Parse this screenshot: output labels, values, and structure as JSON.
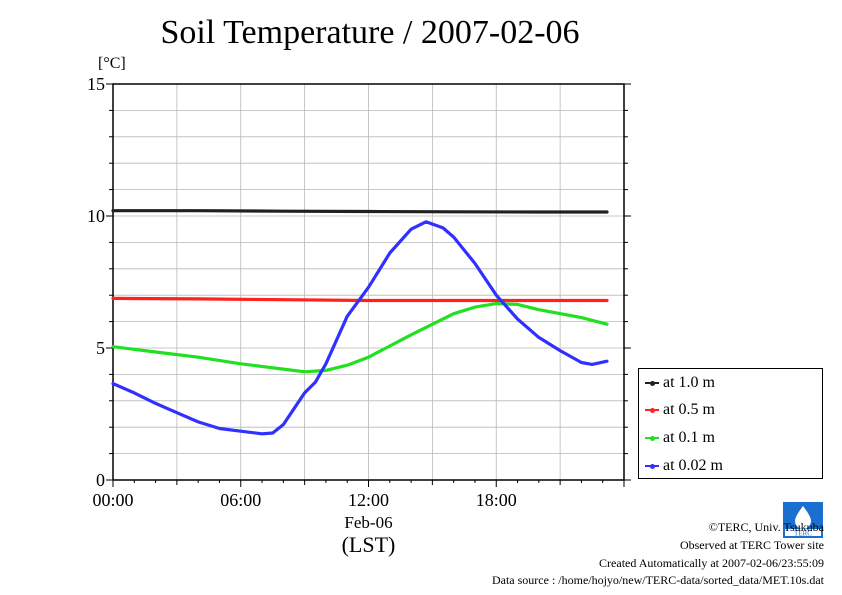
{
  "chart_data": {
    "type": "line",
    "title": "Soil Temperature / 2007-02-06",
    "ylabel": "[°C]",
    "xlabel": "Feb-06",
    "xlabel2": "(LST)",
    "ylim": [
      0,
      15
    ],
    "xlim": [
      0,
      24
    ],
    "y_ticks": [
      "0",
      "5",
      "10",
      "15"
    ],
    "x_ticks": [
      {
        "value": 0,
        "label": "00:00"
      },
      {
        "value": 6,
        "label": "06:00"
      },
      {
        "value": 12,
        "label": "12:00"
      },
      {
        "value": 18,
        "label": "18:00"
      }
    ],
    "grid": true,
    "legend_position": "right-bottom",
    "series": [
      {
        "name": "at 1.0 m",
        "color": "#202020",
        "x": [
          0,
          4,
          8,
          12,
          16,
          20,
          23.2
        ],
        "y": [
          10.2,
          10.2,
          10.18,
          10.17,
          10.16,
          10.15,
          10.15
        ]
      },
      {
        "name": "at 0.5 m",
        "color": "#ff2020",
        "x": [
          0,
          4,
          8,
          12,
          16,
          20,
          23.2
        ],
        "y": [
          6.88,
          6.86,
          6.83,
          6.8,
          6.8,
          6.8,
          6.8
        ]
      },
      {
        "name": "at 0.1 m",
        "color": "#20e020",
        "x": [
          0,
          2,
          4,
          6,
          8,
          9,
          10,
          11,
          12,
          14,
          16,
          17,
          18,
          19,
          20,
          22,
          23.2
        ],
        "y": [
          5.05,
          4.85,
          4.65,
          4.4,
          4.2,
          4.1,
          4.15,
          4.35,
          4.65,
          5.5,
          6.3,
          6.55,
          6.68,
          6.65,
          6.45,
          6.15,
          5.9
        ]
      },
      {
        "name": "at 0.02 m",
        "color": "#3030ff",
        "x": [
          0,
          1,
          2,
          3,
          4,
          5,
          6,
          7,
          7.5,
          8,
          8.5,
          9,
          9.5,
          10,
          11,
          12,
          13,
          14,
          14.7,
          15.5,
          16,
          17,
          18,
          19,
          20,
          21,
          22,
          22.5,
          23.2
        ],
        "y": [
          3.65,
          3.3,
          2.9,
          2.55,
          2.2,
          1.95,
          1.85,
          1.75,
          1.78,
          2.1,
          2.7,
          3.3,
          3.7,
          4.4,
          6.2,
          7.3,
          8.6,
          9.5,
          9.78,
          9.55,
          9.2,
          8.2,
          7.0,
          6.1,
          5.4,
          4.9,
          4.45,
          4.38,
          4.5
        ]
      }
    ]
  },
  "credits": {
    "copyright": "©TERC, Univ. Tsukuba",
    "observed": "Observed at TERC Tower site",
    "created": "Created Automatically at 2007-02-06/23:55:09",
    "source": "Data source : /home/hojyo/new/TERC-data/sorted_data/MET.10s.dat",
    "logo_text": "TERC"
  }
}
